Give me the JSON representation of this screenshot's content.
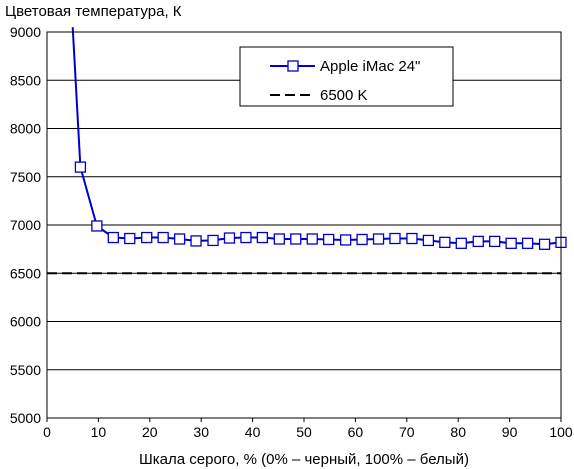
{
  "chart_data": {
    "type": "line",
    "ylabel": "Цветовая температура, К",
    "xlabel": "Шкала серого, % (0% – черный, 100% – белый)",
    "xlim": [
      0,
      100
    ],
    "ylim": [
      5000,
      9000
    ],
    "xticks": [
      0,
      10,
      20,
      30,
      40,
      50,
      60,
      70,
      80,
      90,
      100
    ],
    "yticks": [
      5000,
      5500,
      6000,
      6500,
      7000,
      7500,
      8000,
      8500,
      9000
    ],
    "grid": "horizontal",
    "legend_position": "top-right",
    "series": [
      {
        "name": "Apple iMac 24\"",
        "color": "#0000cc",
        "marker": "square",
        "x": [
          6.5,
          9.7,
          12.9,
          16.1,
          19.4,
          22.6,
          25.8,
          29.0,
          32.3,
          35.5,
          38.7,
          41.9,
          45.2,
          48.4,
          51.6,
          54.8,
          58.1,
          61.3,
          64.5,
          67.7,
          71.0,
          74.2,
          77.4,
          80.6,
          83.9,
          87.1,
          90.3,
          93.5,
          96.8,
          100
        ],
        "y": [
          7600,
          6990,
          6870,
          6860,
          6870,
          6870,
          6855,
          6835,
          6840,
          6865,
          6870,
          6870,
          6855,
          6855,
          6855,
          6850,
          6845,
          6850,
          6855,
          6860,
          6860,
          6840,
          6820,
          6810,
          6830,
          6830,
          6810,
          6810,
          6800,
          6820
        ],
        "line_start": [
          5,
          9050
        ]
      },
      {
        "name": "6500 K",
        "color": "#000000",
        "style": "dashed",
        "x": [
          0,
          100
        ],
        "y": [
          6500,
          6500
        ]
      }
    ]
  }
}
